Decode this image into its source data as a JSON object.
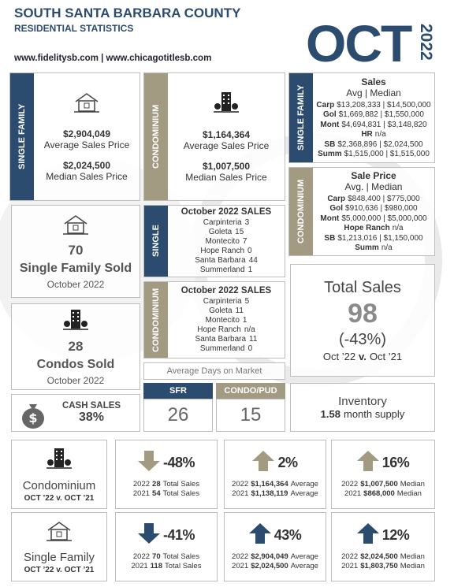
{
  "header": {
    "title": "SOUTH SANTA BARBARA COUNTY",
    "subtitle": "RESIDENTIAL STATISTICS",
    "links": "www.fidelitysb.com | www.chicagotitlesb.com",
    "month": "OCT",
    "year": "2022"
  },
  "single_family_prices": {
    "side_label": "SINGLE FAMILY",
    "average": "$2,904,049",
    "average_label": "Average Sales Price",
    "median": "$2,024,500",
    "median_label": "Median Sales Price"
  },
  "condo_prices": {
    "side_label": "CONDOMINIUM",
    "average": "$1,164,364",
    "average_label": "Average Sales Price",
    "median": "$1,007,500",
    "median_label": "Median Sales Price"
  },
  "single_family_area_prices": {
    "side_label": "SINGLE FAMILY",
    "title": "Sales",
    "subtitle": "Avg | Median",
    "rows": [
      {
        "area": "Carp",
        "values": "$13,208,333 | $14,500,000"
      },
      {
        "area": "Gol",
        "values": "$1,669,882 | $1,550,000"
      },
      {
        "area": "Mont",
        "values": "$4,694,831 | $3,148,820"
      },
      {
        "area": "HR",
        "values": "n/a"
      },
      {
        "area": "SB",
        "values": "$2,368,896 | $2,024,500"
      },
      {
        "area": "Summ",
        "values": "$1,515,000 | $1,515,000"
      }
    ]
  },
  "condo_area_prices": {
    "side_label": "CONDOMINIUM",
    "title": "Sale Price",
    "subtitle": "Avg. | Median",
    "rows": [
      {
        "area": "Carp",
        "values": "$848,400 | $775,000"
      },
      {
        "area": "Gol",
        "values": "$910,636 | $980,000"
      },
      {
        "area": "Mont",
        "values": "$5,000,000 | $5,000,000"
      },
      {
        "area": "Hope Ranch",
        "values": "n/a"
      },
      {
        "area": "SB",
        "values": "$1,213,016 | $1,150,000"
      },
      {
        "area": "Summ",
        "values": "n/a"
      }
    ]
  },
  "single_family_sold": {
    "count": "70",
    "label": "Single Family Sold",
    "period": "October 2022"
  },
  "single_family_area_sales": {
    "side_label": "SINGLE",
    "title": "October 2022 SALES",
    "rows": [
      {
        "area": "Carpinteria",
        "count": "3"
      },
      {
        "area": "Goleta",
        "count": "15"
      },
      {
        "area": "Montecito",
        "count": "7"
      },
      {
        "area": "Hope Ranch",
        "count": "0"
      },
      {
        "area": "Santa Barbara",
        "count": "44"
      },
      {
        "area": "Summerland",
        "count": "1"
      }
    ]
  },
  "total_sales": {
    "title": "Total Sales",
    "count": "98",
    "change": "(-43%)",
    "comparison_start": "Oct ’22",
    "comparison_mid": "v.",
    "comparison_end": "Oct ’21"
  },
  "condos_sold": {
    "count": "28",
    "label": "Condos Sold",
    "period": "October 2022"
  },
  "condo_area_sales": {
    "side_label": "CONDOMINIUM",
    "title": "October 2022 SALES",
    "rows": [
      {
        "area": "Carpinteria",
        "count": "5"
      },
      {
        "area": "Goleta",
        "count": "11"
      },
      {
        "area": "Montecito",
        "count": "1"
      },
      {
        "area": "Hope Ranch",
        "count": "n/a"
      },
      {
        "area": "Santa Barbara",
        "count": "11"
      },
      {
        "area": "Summerland",
        "count": "0"
      }
    ]
  },
  "days_on_market": {
    "title": "Average Days on Market",
    "sfr_label": "SFR",
    "sfr_value": "26",
    "condo_label": "CONDO/PUD",
    "condo_value": "15"
  },
  "cash_sales": {
    "label": "CASH SALES",
    "value": "38%"
  },
  "inventory": {
    "title": "Inventory",
    "value": "1.58",
    "unit": "month supply"
  },
  "comparisons": [
    {
      "label": "Condominium",
      "period": "OCT ’22 v. OCT ’21",
      "icon": "building",
      "color": "#a39a82",
      "metrics": [
        {
          "change": "-48%",
          "direction": "down",
          "lines": [
            {
              "year": "2022",
              "value": "28",
              "unit": "Total Sales"
            },
            {
              "year": "2021",
              "value": "54",
              "unit": "Total Sales"
            }
          ]
        },
        {
          "change": "2%",
          "direction": "up",
          "lines": [
            {
              "year": "2022",
              "value": "$1,164,364",
              "unit": "Average"
            },
            {
              "year": "2021",
              "value": "$1,138,119",
              "unit": "Average"
            }
          ]
        },
        {
          "change": "16%",
          "direction": "up",
          "lines": [
            {
              "year": "2022",
              "value": "$1,007,500",
              "unit": "Median"
            },
            {
              "year": "2021",
              "value": "$868,000",
              "unit": "Median"
            }
          ]
        }
      ]
    },
    {
      "label": "Single Family",
      "period": "OCT ’22 v. OCT ’21",
      "icon": "house",
      "color": "#2b4c6f",
      "metrics": [
        {
          "change": "-41%",
          "direction": "down",
          "lines": [
            {
              "year": "2022",
              "value": "70",
              "unit": "Total Sales"
            },
            {
              "year": "2021",
              "value": "118",
              "unit": "Total Sales"
            }
          ]
        },
        {
          "change": "43%",
          "direction": "up",
          "lines": [
            {
              "year": "2022",
              "value": "$2,904,049",
              "unit": "Average"
            },
            {
              "year": "2021",
              "value": "$2,024,500",
              "unit": "Average"
            }
          ]
        },
        {
          "change": "12%",
          "direction": "up",
          "lines": [
            {
              "year": "2022",
              "value": "$2,024,500",
              "unit": "Median"
            },
            {
              "year": "2021",
              "value": "$1,803,750",
              "unit": "Median"
            }
          ]
        }
      ]
    }
  ]
}
